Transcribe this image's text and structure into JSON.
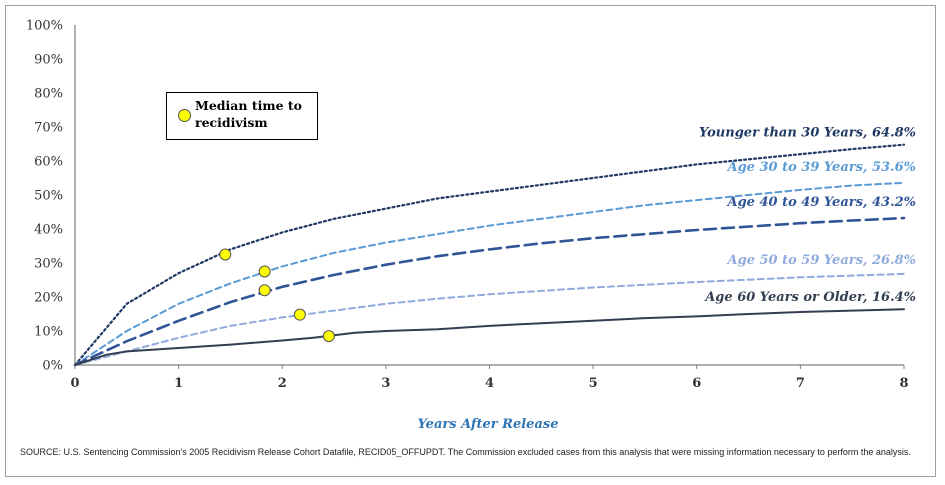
{
  "chart_data": {
    "type": "line",
    "xlabel": "Years After Release",
    "xlim": [
      0,
      8
    ],
    "ylim": [
      0,
      100
    ],
    "x_ticks": [
      "0",
      "1",
      "2",
      "3",
      "4",
      "5",
      "6",
      "7",
      "8"
    ],
    "y_ticks": [
      "0%",
      "10%",
      "20%",
      "30%",
      "40%",
      "50%",
      "60%",
      "70%",
      "80%",
      "90%",
      "100%"
    ],
    "legend": {
      "label": "Median time to recidivism",
      "marker_color": "#ffff00",
      "placement": "upper-left"
    },
    "series": [
      {
        "name": "Younger than 30 Years, 64.8%",
        "label": "Younger than 30 Years, 64.8%",
        "color": "#1f3864",
        "style": "dotted",
        "x": [
          0,
          0.5,
          1,
          1.5,
          2,
          2.5,
          3,
          3.5,
          4,
          4.5,
          5,
          5.5,
          6,
          6.5,
          7,
          7.5,
          8
        ],
        "y": [
          0,
          18,
          27,
          34,
          39,
          43,
          46,
          49,
          51,
          53,
          55,
          57,
          59,
          60.5,
          62,
          63.5,
          64.8
        ],
        "median": {
          "x": 1.45,
          "y": 32.5
        }
      },
      {
        "name": "Age 30 to 39 Years, 53.6%",
        "label": "Age 30 to 39 Years, 53.6%",
        "color": "#5b9bd5",
        "style": "dashed",
        "x": [
          0,
          0.5,
          1,
          1.5,
          2,
          2.5,
          3,
          3.5,
          4,
          4.5,
          5,
          5.5,
          6,
          6.5,
          7,
          7.5,
          8
        ],
        "y": [
          0,
          10,
          18,
          24,
          29,
          33,
          36,
          38.5,
          41,
          43,
          45,
          47,
          48.5,
          50,
          51.5,
          52.8,
          53.6
        ],
        "median": {
          "x": 1.83,
          "y": 27.5
        }
      },
      {
        "name": "Age 40 to 49 Years, 43.2%",
        "label": "Age 40 to 49 Years, 43.2%",
        "color": "#2f5597",
        "style": "long-dashed",
        "x": [
          0,
          0.5,
          1,
          1.5,
          2,
          2.5,
          3,
          3.5,
          4,
          4.5,
          5,
          5.5,
          6,
          6.5,
          7,
          7.5,
          8
        ],
        "y": [
          0,
          7,
          13,
          18.5,
          23,
          26.5,
          29.5,
          32,
          34,
          35.8,
          37.3,
          38.5,
          39.7,
          40.7,
          41.7,
          42.5,
          43.2
        ],
        "median": {
          "x": 1.83,
          "y": 22
        }
      },
      {
        "name": "Age 50 to 59 Years, 26.8%",
        "label": "Age 50 to 59 Years, 26.8%",
        "color": "#8faadc",
        "style": "dashed",
        "x": [
          0,
          0.5,
          1,
          1.5,
          2,
          2.5,
          3,
          3.5,
          4,
          4.5,
          5,
          5.5,
          6,
          6.5,
          7,
          7.5,
          8
        ],
        "y": [
          0,
          4,
          8,
          11.5,
          14,
          16,
          18,
          19.5,
          20.8,
          21.8,
          22.8,
          23.6,
          24.4,
          25.1,
          25.8,
          26.3,
          26.8
        ],
        "median": {
          "x": 2.17,
          "y": 14.8
        }
      },
      {
        "name": "Age 60 Years or Older, 16.4%",
        "label": "Age 60 Years or Older, 16.4%",
        "color": "#333f50",
        "style": "solid",
        "x": [
          0,
          0.3,
          0.5,
          1,
          1.5,
          2,
          2.3,
          2.7,
          3,
          3.5,
          4,
          4.5,
          5,
          5.5,
          6,
          6.5,
          7,
          7.5,
          8
        ],
        "y": [
          0,
          3,
          4,
          5,
          6,
          7.2,
          8,
          9.5,
          10,
          10.5,
          11.5,
          12.3,
          13,
          13.8,
          14.3,
          15,
          15.6,
          16,
          16.4
        ],
        "median": {
          "x": 2.45,
          "y": 8.5
        }
      }
    ],
    "grid": false
  },
  "source_text": "SOURCE: U.S. Sentencing Commission's 2005 Recidivism Release Cohort Datafile, RECID05_OFFUPDT. The Commission excluded cases from this analysis that were missing information necessary to perform the analysis."
}
